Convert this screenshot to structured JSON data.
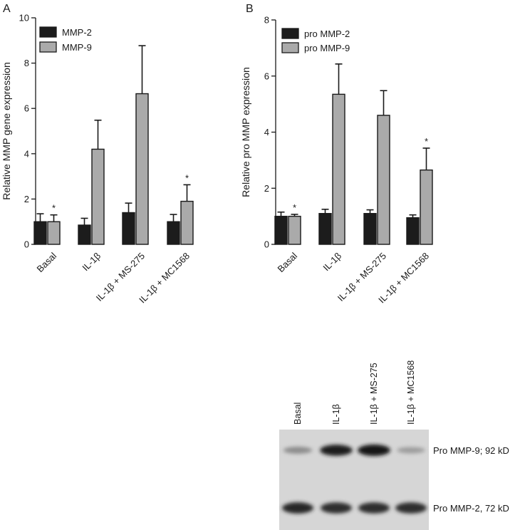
{
  "chart_data": [
    {
      "type": "bar",
      "panel_label": "A",
      "ylabel": "Relative MMP gene expression",
      "ylim": [
        0,
        10
      ],
      "yticks": [
        0,
        2,
        4,
        6,
        8,
        10
      ],
      "categories": [
        "Basal",
        "IL-1β",
        "IL-1β + MS-275",
        "IL-1β + MC1568"
      ],
      "legend_position": "top-left",
      "series": [
        {
          "name": "MMP-2",
          "color": "#1c1c1c",
          "values": [
            1.0,
            0.85,
            1.4,
            1.0
          ],
          "error": [
            0.35,
            0.3,
            0.42,
            0.32
          ]
        },
        {
          "name": "MMP-9",
          "color": "#aaaaaa",
          "values": [
            1.0,
            4.2,
            6.65,
            1.9
          ],
          "error": [
            0.3,
            1.28,
            2.12,
            0.73
          ]
        }
      ],
      "annotations": [
        {
          "category": "Basal",
          "series": "MMP-9",
          "text": "*"
        },
        {
          "category": "IL-1β + MC1568",
          "series": "MMP-9",
          "text": "*"
        }
      ]
    },
    {
      "type": "bar",
      "panel_label": "B",
      "ylabel": "Relative pro MMP expression",
      "ylim": [
        0,
        8
      ],
      "yticks": [
        0,
        2,
        4,
        6,
        8
      ],
      "categories": [
        "Basal",
        "IL-1β",
        "IL-1β + MS-275",
        "IL-1β + MC1568"
      ],
      "legend_position": "top-left",
      "series": [
        {
          "name": "pro MMP-2",
          "color": "#1c1c1c",
          "values": [
            1.0,
            1.1,
            1.1,
            0.95
          ],
          "error": [
            0.15,
            0.15,
            0.13,
            0.1
          ]
        },
        {
          "name": "pro MMP-9",
          "color": "#aaaaaa",
          "values": [
            1.0,
            5.35,
            4.6,
            2.65
          ],
          "error": [
            0.07,
            1.08,
            0.88,
            0.78
          ]
        }
      ],
      "annotations": [
        {
          "category": "Basal",
          "series": "pro MMP-9",
          "text": "*"
        },
        {
          "category": "IL-1β + MC1568",
          "series": "pro MMP-9",
          "text": "*"
        }
      ]
    }
  ],
  "blot": {
    "lanes": [
      "Basal",
      "IL-1β",
      "IL-1β + MS-275",
      "IL-1β + MC1568"
    ],
    "bands": [
      {
        "label": "Pro MMP-9; 92 kD",
        "intensities": [
          0.3,
          0.95,
          1.0,
          0.2
        ]
      },
      {
        "label": "Pro MMP-2, 72 kD",
        "intensities": [
          0.9,
          0.85,
          0.85,
          0.85
        ]
      }
    ]
  }
}
